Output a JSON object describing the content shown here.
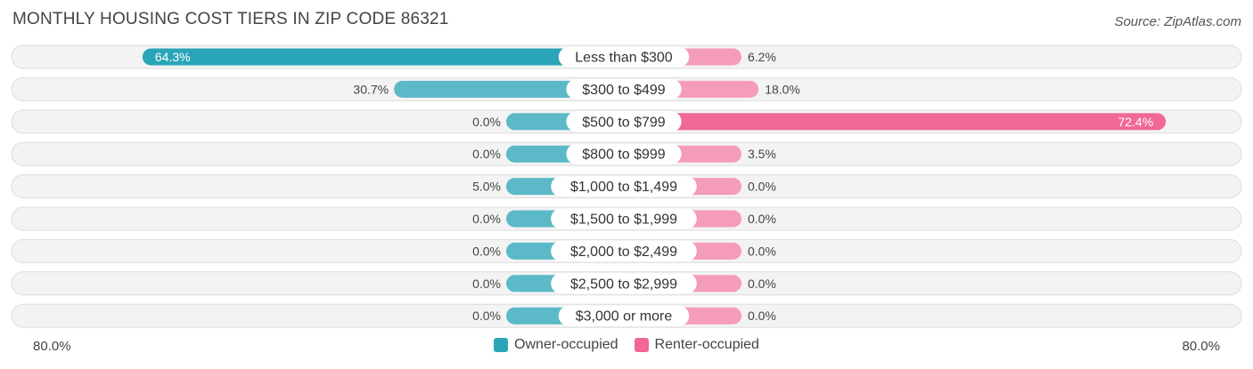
{
  "title": "MONTHLY HOUSING COST TIERS IN ZIP CODE 86321",
  "source": "Source: ZipAtlas.com",
  "colors": {
    "owner": "#5BB9C8",
    "owner_strong": "#2AA5B8",
    "renter": "#F59BBB",
    "renter_strong": "#F06893",
    "track": "#EFEFEF"
  },
  "chart_data": {
    "type": "bar",
    "orientation": "horizontal-diverging",
    "categories": [
      "Less than $300",
      "$300 to $499",
      "$500 to $799",
      "$800 to $999",
      "$1,000 to $1,499",
      "$1,500 to $1,999",
      "$2,000 to $2,499",
      "$2,500 to $2,999",
      "$3,000 or more"
    ],
    "series": [
      {
        "name": "Owner-occupied",
        "values": [
          64.3,
          30.7,
          0.0,
          0.0,
          5.0,
          0.0,
          0.0,
          0.0,
          0.0
        ],
        "labels": [
          "64.3%",
          "30.7%",
          "0.0%",
          "0.0%",
          "5.0%",
          "0.0%",
          "0.0%",
          "0.0%",
          "0.0%"
        ]
      },
      {
        "name": "Renter-occupied",
        "values": [
          6.2,
          18.0,
          72.4,
          3.5,
          0.0,
          0.0,
          0.0,
          0.0,
          0.0
        ],
        "labels": [
          "6.2%",
          "18.0%",
          "72.4%",
          "3.5%",
          "0.0%",
          "0.0%",
          "0.0%",
          "0.0%",
          "0.0%"
        ]
      }
    ],
    "xlim": [
      -80,
      80
    ],
    "axis_left_label": "80.0%",
    "axis_right_label": "80.0%",
    "legend_position": "bottom-center"
  }
}
